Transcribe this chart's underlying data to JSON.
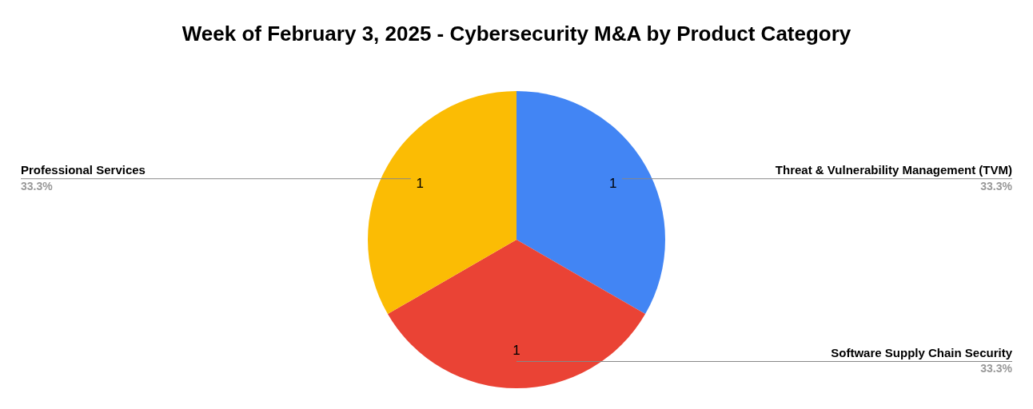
{
  "chart_data": {
    "type": "pie",
    "title": "Week of February 3, 2025 - Cybersecurity M&A by Product Category",
    "categories": [
      "Threat & Vulnerability Management (TVM)",
      "Software Supply Chain Security",
      "Professional Services"
    ],
    "values": [
      1,
      1,
      1
    ],
    "annotations": [
      {
        "text": "33.3%",
        "x": "Threat & Vulnerability Management (TVM)"
      },
      {
        "text": "33.3%",
        "x": "Software Supply Chain Security"
      },
      {
        "text": "33.3%",
        "x": "Professional Services"
      }
    ],
    "colors": [
      "#4285f4",
      "#ea4335",
      "#fbbc04"
    ],
    "data_labels": true,
    "legend": false
  }
}
